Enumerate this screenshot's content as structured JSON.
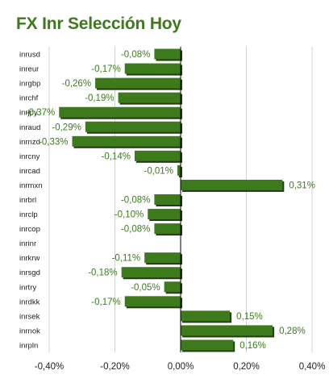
{
  "chart_data": {
    "type": "bar",
    "orientation": "horizontal",
    "title": "FX Inr Selección Hoy",
    "xlabel": "",
    "ylabel": "",
    "xlim": [
      -0.4,
      0.4
    ],
    "xticks": [
      "-0,40%",
      "-0,20%",
      "0,00%",
      "0,20%",
      "0,40%"
    ],
    "xtick_values": [
      -0.4,
      -0.2,
      0.0,
      0.2,
      0.4
    ],
    "grid": "vertical",
    "legend": "none",
    "categories": [
      "inrusd",
      "inreur",
      "inrgbp",
      "inrchf",
      "inrjpy",
      "inraud",
      "inrnzd",
      "inrcny",
      "inrcad",
      "inrmxn",
      "inrbrl",
      "inrclp",
      "inrcop",
      "inrinr",
      "inrkrw",
      "inrsgd",
      "inrtry",
      "inrdkk",
      "inrsek",
      "inrnok",
      "inrpln"
    ],
    "values": [
      -0.08,
      -0.17,
      -0.26,
      -0.19,
      -0.37,
      -0.29,
      -0.33,
      -0.14,
      -0.01,
      0.31,
      -0.08,
      -0.1,
      -0.08,
      0.0,
      -0.11,
      -0.18,
      -0.05,
      -0.17,
      0.15,
      0.28,
      0.16
    ],
    "value_labels": [
      "-0,08%",
      "-0,17%",
      "-0,26%",
      "-0,19%",
      "-0,37%",
      "-0,29%",
      "-0,33%",
      "-0,14%",
      "-0,01%",
      "0,31%",
      "-0,08%",
      "-0,10%",
      "-0,08%",
      "",
      "-0,11%",
      "-0,18%",
      "-0,05%",
      "-0,17%",
      "0,15%",
      "0,28%",
      "0,16%"
    ],
    "colors": {
      "bar": "#3d7a1c",
      "bar_shadow": "#1f3f0c",
      "label": "#3d7a1c",
      "axis": "#000000",
      "grid": "#d0d0d0"
    }
  }
}
